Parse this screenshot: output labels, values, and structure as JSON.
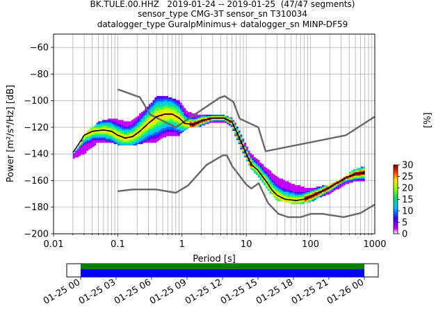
{
  "title_lines": [
    "BK.TULE.00.HHZ   2019-01-24 -- 2019-01-25  (47/47 segments)",
    "sensor_type CMG-3T sensor_sn T310034",
    "datalogger_type GuralpMinimus+ datalogger_sn MINP-DF59"
  ],
  "colorbar": {
    "unit_label": "[%]",
    "ticks": [
      "0",
      "5",
      "10",
      "15",
      "20",
      "25",
      "30"
    ],
    "range": [
      0,
      30
    ]
  },
  "timeline": {
    "tick_labels": [
      "01-25 00",
      "01-25 03",
      "01-25 06",
      "01-25 09",
      "01-25 12",
      "01-25 15",
      "01-25 18",
      "01-25 21",
      "01-26 00"
    ],
    "colors": {
      "data": "#0000ff",
      "coverage": "#008000"
    }
  },
  "colors": {
    "model_lines": "#666666",
    "mode_line": "#000000",
    "grid": "#b0b0b0"
  },
  "chart_data": {
    "type": "heatmap",
    "xlabel": "Period [s]",
    "ylabel": "Power [m²/s⁴/Hz] [dB]",
    "x_scale": "log",
    "xlim": [
      0.01,
      1000
    ],
    "ylim": [
      -200,
      -50
    ],
    "x_tick_labels": [
      "0.01",
      "0.1",
      "1",
      "10",
      "100",
      "1000"
    ],
    "y_tick_labels": [
      "−60",
      "−80",
      "−100",
      "−120",
      "−140",
      "−160",
      "−180",
      "−200"
    ],
    "y_ticks": [
      -60,
      -80,
      -100,
      -120,
      -140,
      -160,
      -180,
      -200
    ],
    "grid": true,
    "series": [
      {
        "kind": "high-noise-model",
        "points": [
          [
            0.1,
            -91.5
          ],
          [
            0.22,
            -97.4
          ],
          [
            0.32,
            -110.5
          ],
          [
            0.8,
            -120
          ],
          [
            3.8,
            -98
          ],
          [
            4.6,
            -96.5
          ],
          [
            6.3,
            -101
          ],
          [
            7.9,
            -113.5
          ],
          [
            15.4,
            -120
          ],
          [
            20,
            -138
          ],
          [
            354.8,
            -126
          ],
          [
            1000,
            -112
          ]
        ]
      },
      {
        "kind": "low-noise-model",
        "points": [
          [
            0.1,
            -168
          ],
          [
            0.17,
            -166.7
          ],
          [
            0.4,
            -166.7
          ],
          [
            0.8,
            -169.2
          ],
          [
            1.24,
            -163.7
          ],
          [
            2.4,
            -148.3
          ],
          [
            4.3,
            -141.1
          ],
          [
            5.0,
            -141.1
          ],
          [
            6.0,
            -149
          ],
          [
            10,
            -163
          ],
          [
            12,
            -166
          ],
          [
            15.6,
            -162
          ],
          [
            21.9,
            -177
          ],
          [
            31.6,
            -185
          ],
          [
            45,
            -187.5
          ],
          [
            70,
            -187.5
          ],
          [
            101,
            -185
          ],
          [
            154,
            -185
          ],
          [
            328.5,
            -187.5
          ],
          [
            600,
            -184.4
          ],
          [
            1000,
            -178
          ]
        ]
      },
      {
        "kind": "mode",
        "points": [
          [
            0.02,
            -139
          ],
          [
            0.025,
            -132
          ],
          [
            0.03,
            -126
          ],
          [
            0.04,
            -123
          ],
          [
            0.06,
            -122
          ],
          [
            0.08,
            -123
          ],
          [
            0.1,
            -126
          ],
          [
            0.13,
            -128
          ],
          [
            0.17,
            -127
          ],
          [
            0.22,
            -123
          ],
          [
            0.3,
            -117
          ],
          [
            0.4,
            -112
          ],
          [
            0.55,
            -110
          ],
          [
            0.7,
            -110
          ],
          [
            0.9,
            -113
          ],
          [
            1.1,
            -117
          ],
          [
            1.5,
            -118
          ],
          [
            2,
            -115
          ],
          [
            3,
            -113
          ],
          [
            4.5,
            -113
          ],
          [
            6,
            -116
          ],
          [
            7,
            -123
          ],
          [
            8.5,
            -132
          ],
          [
            10,
            -140
          ],
          [
            12,
            -148
          ],
          [
            15,
            -152
          ],
          [
            20,
            -160
          ],
          [
            25,
            -167
          ],
          [
            30,
            -171
          ],
          [
            40,
            -174
          ],
          [
            60,
            -175
          ],
          [
            80,
            -174
          ],
          [
            100,
            -172
          ],
          [
            150,
            -168
          ],
          [
            200,
            -165
          ],
          [
            350,
            -158
          ],
          [
            500,
            -155
          ],
          [
            700,
            -154
          ]
        ]
      },
      {
        "kind": "psd-density-upper",
        "points": [
          [
            0.02,
            -140
          ],
          [
            0.025,
            -134
          ],
          [
            0.03,
            -125
          ],
          [
            0.05,
            -116
          ],
          [
            0.08,
            -113
          ],
          [
            0.1,
            -114
          ],
          [
            0.15,
            -116
          ],
          [
            0.2,
            -112
          ],
          [
            0.3,
            -104
          ],
          [
            0.4,
            -97
          ],
          [
            0.6,
            -97
          ],
          [
            0.9,
            -100
          ],
          [
            1.2,
            -108
          ],
          [
            2,
            -111
          ],
          [
            3,
            -111
          ],
          [
            4.5,
            -111
          ],
          [
            6,
            -113
          ],
          [
            7,
            -118
          ],
          [
            8.5,
            -126
          ],
          [
            10,
            -134
          ],
          [
            12,
            -140
          ],
          [
            15,
            -144
          ],
          [
            20,
            -150
          ],
          [
            30,
            -157
          ],
          [
            50,
            -162
          ],
          [
            80,
            -165
          ],
          [
            100,
            -166
          ],
          [
            150,
            -164
          ],
          [
            200,
            -163
          ],
          [
            350,
            -157
          ],
          [
            450,
            -152
          ],
          [
            700,
            -149
          ]
        ]
      },
      {
        "kind": "psd-density-lower",
        "points": [
          [
            0.02,
            -144
          ],
          [
            0.03,
            -140
          ],
          [
            0.05,
            -131
          ],
          [
            0.08,
            -131
          ],
          [
            0.1,
            -133
          ],
          [
            0.15,
            -134
          ],
          [
            0.2,
            -133
          ],
          [
            0.3,
            -131
          ],
          [
            0.4,
            -131
          ],
          [
            0.6,
            -126
          ],
          [
            0.9,
            -126
          ],
          [
            1.2,
            -121
          ],
          [
            2,
            -119
          ],
          [
            3,
            -116
          ],
          [
            4.5,
            -116
          ],
          [
            6,
            -120
          ],
          [
            7,
            -128
          ],
          [
            8.5,
            -137
          ],
          [
            10,
            -144
          ],
          [
            12,
            -152
          ],
          [
            15,
            -156
          ],
          [
            20,
            -165
          ],
          [
            30,
            -175
          ],
          [
            50,
            -177
          ],
          [
            80,
            -177
          ],
          [
            100,
            -176
          ],
          [
            150,
            -172
          ],
          [
            200,
            -170
          ],
          [
            350,
            -163
          ],
          [
            450,
            -161
          ],
          [
            700,
            -160
          ]
        ]
      }
    ]
  }
}
